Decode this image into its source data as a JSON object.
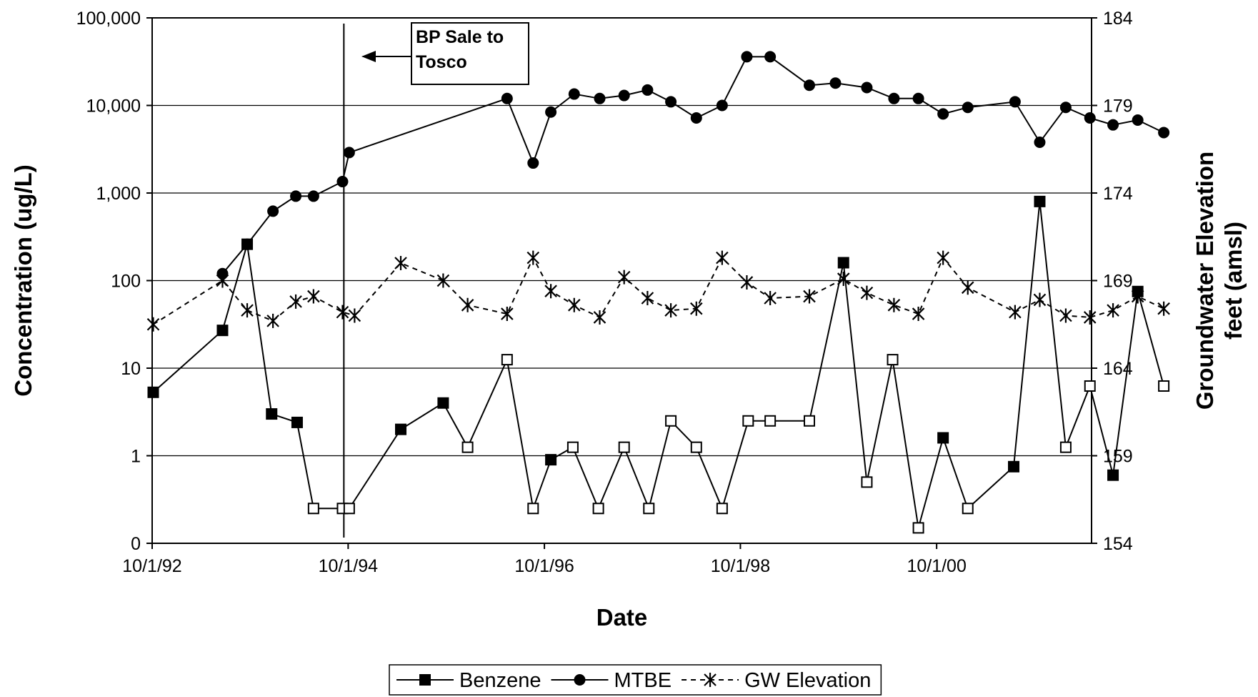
{
  "chart_data": {
    "type": "line",
    "xlabel": "Date",
    "ylabel_left": "Concentration (ug/L)",
    "ylabel_right_lines": [
      "Groundwater Elevation",
      "feet (amsl)"
    ],
    "x_ticks": [
      "10/1/92",
      "10/1/94",
      "10/1/96",
      "10/1/98",
      "10/1/00"
    ],
    "x_tick_values": [
      "1992-10-01",
      "1994-10-01",
      "1996-10-01",
      "1998-10-01",
      "2000-10-01"
    ],
    "xlim": [
      "1992-10-01",
      "2002-05-01"
    ],
    "y_left_ticks": [
      "0",
      "1",
      "10",
      "100",
      "1,000",
      "10,000",
      "100,000"
    ],
    "y_left_scale": "log",
    "y_left_note": "bottom tick labeled 0 corresponds to 0.1 on the log scale",
    "y_left_values": [
      0.1,
      1,
      10,
      100,
      1000,
      10000,
      100000
    ],
    "y_right_ticks": [
      "154",
      "159",
      "164",
      "169",
      "174",
      "179",
      "184"
    ],
    "y_right_values": [
      154,
      159,
      164,
      169,
      174,
      179,
      184
    ],
    "ylim_right": [
      154,
      184
    ],
    "grid": "horizontal",
    "legend_position": "bottom",
    "annotation": {
      "lines": [
        "BP Sale to",
        "Tosco"
      ],
      "date": "1994-09-15"
    },
    "series": [
      {
        "name": "Benzene",
        "axis": "left",
        "marker": "square",
        "color": "#000000",
        "points": [
          {
            "date": "1992-10-05",
            "value": 5.3,
            "detected": true
          },
          {
            "date": "1993-06-20",
            "value": 27,
            "detected": true
          },
          {
            "date": "1993-09-20",
            "value": 260,
            "detected": true
          },
          {
            "date": "1993-12-20",
            "value": 3.0,
            "detected": true
          },
          {
            "date": "1994-03-25",
            "value": 2.4,
            "detected": true
          },
          {
            "date": "1994-05-25",
            "value": 0.25,
            "detected": false
          },
          {
            "date": "1994-09-10",
            "value": 0.25,
            "detected": false
          },
          {
            "date": "1994-10-05",
            "value": 0.25,
            "detected": false
          },
          {
            "date": "1995-04-15",
            "value": 2.0,
            "detected": true
          },
          {
            "date": "1995-09-20",
            "value": 4.0,
            "detected": true
          },
          {
            "date": "1995-12-20",
            "value": 1.25,
            "detected": false
          },
          {
            "date": "1996-05-15",
            "value": 12.5,
            "detected": false
          },
          {
            "date": "1996-08-20",
            "value": 0.25,
            "detected": false
          },
          {
            "date": "1996-10-25",
            "value": 0.9,
            "detected": true
          },
          {
            "date": "1997-01-15",
            "value": 1.25,
            "detected": false
          },
          {
            "date": "1997-04-20",
            "value": 0.25,
            "detected": false
          },
          {
            "date": "1997-07-25",
            "value": 1.25,
            "detected": false
          },
          {
            "date": "1997-10-25",
            "value": 0.25,
            "detected": false
          },
          {
            "date": "1998-01-15",
            "value": 2.5,
            "detected": false
          },
          {
            "date": "1998-04-20",
            "value": 1.25,
            "detected": false
          },
          {
            "date": "1998-07-25",
            "value": 0.25,
            "detected": false
          },
          {
            "date": "1998-10-30",
            "value": 2.5,
            "detected": false
          },
          {
            "date": "1999-01-20",
            "value": 2.5,
            "detected": false
          },
          {
            "date": "1999-06-15",
            "value": 2.5,
            "detected": false
          },
          {
            "date": "1999-10-20",
            "value": 160,
            "detected": true
          },
          {
            "date": "2000-01-15",
            "value": 0.5,
            "detected": false
          },
          {
            "date": "2000-04-20",
            "value": 12.5,
            "detected": false
          },
          {
            "date": "2000-07-25",
            "value": 0.15,
            "detected": false
          },
          {
            "date": "2000-10-25",
            "value": 1.6,
            "detected": true
          },
          {
            "date": "2001-01-25",
            "value": 0.25,
            "detected": false
          },
          {
            "date": "2001-07-15",
            "value": 0.75,
            "detected": true
          },
          {
            "date": "2001-10-20",
            "value": 800,
            "detected": true
          },
          {
            "date": "2002-01-25",
            "value": 1.25,
            "detected": false
          },
          {
            "date": "2002-04-25",
            "value": 6.25,
            "detected": false
          },
          {
            "date": "2002-07-20",
            "value": 0.6,
            "detected": true
          },
          {
            "date": "2002-10-20",
            "value": 75,
            "detected": true
          },
          {
            "date": "2003-01-25",
            "value": 6.25,
            "detected": false
          }
        ]
      },
      {
        "name": "MTBE",
        "axis": "left",
        "marker": "circle",
        "color": "#000000",
        "points": [
          {
            "date": "1993-06-20",
            "value": 120
          },
          {
            "date": "1993-09-20",
            "value": 260
          },
          {
            "date": "1993-12-25",
            "value": 620
          },
          {
            "date": "1994-03-20",
            "value": 920
          },
          {
            "date": "1994-05-25",
            "value": 920
          },
          {
            "date": "1994-09-10",
            "value": 1350
          },
          {
            "date": "1994-10-05",
            "value": 2900
          },
          {
            "date": "1996-05-15",
            "value": 12000
          },
          {
            "date": "1996-08-20",
            "value": 2200
          },
          {
            "date": "1996-10-25",
            "value": 8400
          },
          {
            "date": "1997-01-20",
            "value": 13500
          },
          {
            "date": "1997-04-25",
            "value": 12000
          },
          {
            "date": "1997-07-25",
            "value": 13000
          },
          {
            "date": "1997-10-20",
            "value": 15000
          },
          {
            "date": "1998-01-15",
            "value": 11000
          },
          {
            "date": "1998-04-20",
            "value": 7200
          },
          {
            "date": "1998-07-25",
            "value": 10000
          },
          {
            "date": "1998-10-25",
            "value": 36000
          },
          {
            "date": "1999-01-20",
            "value": 36000
          },
          {
            "date": "1999-06-15",
            "value": 17000
          },
          {
            "date": "1999-09-20",
            "value": 18000
          },
          {
            "date": "2000-01-15",
            "value": 16000
          },
          {
            "date": "2000-04-25",
            "value": 12000
          },
          {
            "date": "2000-07-25",
            "value": 12000
          },
          {
            "date": "2000-10-25",
            "value": 8000
          },
          {
            "date": "2001-01-25",
            "value": 9500
          },
          {
            "date": "2001-07-20",
            "value": 11000
          },
          {
            "date": "2001-10-20",
            "value": 3800
          },
          {
            "date": "2002-01-25",
            "value": 9500
          },
          {
            "date": "2002-04-25",
            "value": 7200
          },
          {
            "date": "2002-07-20",
            "value": 6000
          },
          {
            "date": "2002-10-20",
            "value": 6800
          },
          {
            "date": "2003-01-25",
            "value": 4900
          }
        ]
      },
      {
        "name": "GW Elevation",
        "axis": "right",
        "marker": "asterisk",
        "color": "#000000",
        "points": [
          {
            "date": "1992-10-05",
            "value": 166.5
          },
          {
            "date": "1993-06-20",
            "value": 169.0
          },
          {
            "date": "1993-09-20",
            "value": 167.3
          },
          {
            "date": "1993-12-25",
            "value": 166.7
          },
          {
            "date": "1994-03-20",
            "value": 167.8
          },
          {
            "date": "1994-05-25",
            "value": 168.1
          },
          {
            "date": "1994-09-10",
            "value": 167.2
          },
          {
            "date": "1994-10-25",
            "value": 167.0
          },
          {
            "date": "1995-04-15",
            "value": 170.0
          },
          {
            "date": "1995-09-20",
            "value": 169.0
          },
          {
            "date": "1995-12-20",
            "value": 167.6
          },
          {
            "date": "1996-05-15",
            "value": 167.1
          },
          {
            "date": "1996-08-20",
            "value": 170.3
          },
          {
            "date": "1996-10-25",
            "value": 168.4
          },
          {
            "date": "1997-01-20",
            "value": 167.6
          },
          {
            "date": "1997-04-25",
            "value": 166.9
          },
          {
            "date": "1997-07-25",
            "value": 169.2
          },
          {
            "date": "1997-10-20",
            "value": 168.0
          },
          {
            "date": "1998-01-15",
            "value": 167.3
          },
          {
            "date": "1998-04-20",
            "value": 167.4
          },
          {
            "date": "1998-07-25",
            "value": 170.3
          },
          {
            "date": "1998-10-25",
            "value": 168.9
          },
          {
            "date": "1999-01-20",
            "value": 168.0
          },
          {
            "date": "1999-06-15",
            "value": 168.1
          },
          {
            "date": "1999-10-20",
            "value": 169.1
          },
          {
            "date": "2000-01-15",
            "value": 168.3
          },
          {
            "date": "2000-04-25",
            "value": 167.6
          },
          {
            "date": "2000-07-25",
            "value": 167.1
          },
          {
            "date": "2000-10-25",
            "value": 170.3
          },
          {
            "date": "2001-01-25",
            "value": 168.6
          },
          {
            "date": "2001-07-20",
            "value": 167.2
          },
          {
            "date": "2001-10-20",
            "value": 167.9
          },
          {
            "date": "2002-01-25",
            "value": 167.0
          },
          {
            "date": "2002-04-25",
            "value": 166.9
          },
          {
            "date": "2002-07-20",
            "value": 167.3
          },
          {
            "date": "2002-10-20",
            "value": 168.1
          },
          {
            "date": "2003-01-25",
            "value": 167.4
          }
        ]
      }
    ]
  }
}
